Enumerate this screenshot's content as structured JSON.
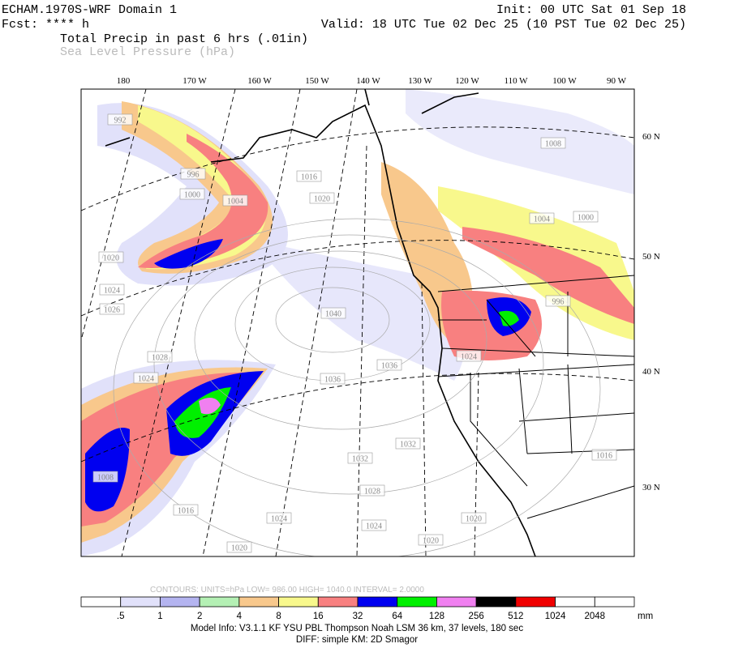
{
  "header": {
    "model": "ECHAM.1970S-WRF Domain 1",
    "forecast": "Fcst: **** h",
    "field1": "Total Precip in past 6 hrs (.01in)",
    "field2": "Sea Level Pressure (hPa)",
    "init": "Init: 00 UTC Sat 01 Sep 18",
    "valid": "Valid: 18 UTC Tue 02 Dec 25 (10 PST Tue 02 Dec 25)"
  },
  "map": {
    "longitude_labels": [
      "180",
      "170 W",
      "160 W",
      "150 W",
      "140 W",
      "130 W",
      "120 W",
      "110 W",
      "100 W",
      "90 W"
    ],
    "latitude_labels": [
      "60 N",
      "50 N",
      "40 N",
      "30 N"
    ],
    "pressure_labels": [
      "992",
      "996",
      "1000",
      "1004",
      "1016",
      "1020",
      "1020",
      "1024",
      "1026",
      "1040",
      "1036",
      "1028",
      "1024",
      "1036",
      "1032",
      "1032",
      "1028",
      "1024",
      "1024",
      "1020",
      "1020",
      "1020",
      "1008",
      "1016",
      "1004",
      "1000",
      "1008",
      "1016",
      "1024",
      "996"
    ]
  },
  "contour_info": "CONTOURS:  UNITS=hPa  LOW=  986.00       HIGH=  1040.0       INTERVAL=    2.0000",
  "colorbar": {
    "colors": [
      "#ffffff",
      "#e1e1fa",
      "#b4b4f0",
      "#b4f0b4",
      "#f8c88c",
      "#f8f88c",
      "#f88080",
      "#0000f0",
      "#00f000",
      "#f080f0",
      "#000000",
      "#f00000",
      "#ffffff",
      "#ffffff"
    ],
    "labels": [
      ".5",
      "1",
      "2",
      "4",
      "8",
      "16",
      "32",
      "64",
      "128",
      "256",
      "512",
      "1024",
      "2048"
    ],
    "unit": "mm"
  },
  "footer": {
    "model_info": "Model Info: V3.1.1    KF       YSU PBL   Thompson     Noah LSM   36 km,    37 levels,   180 sec",
    "diff": "DIFF: simple KM: 2D Smagor"
  }
}
